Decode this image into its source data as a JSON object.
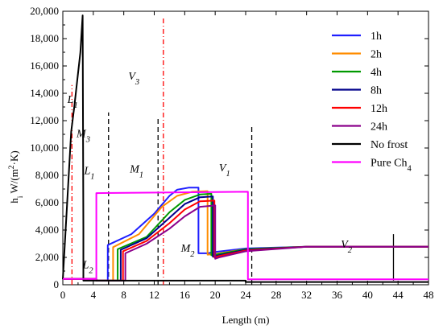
{
  "chart_data": {
    "type": "line",
    "xlabel": "Length (m)",
    "ylabel": "h_i W/(m^2·K)",
    "xlim": [
      0,
      48
    ],
    "ylim": [
      0,
      20000
    ],
    "x_ticks": [
      "0",
      "4",
      "8",
      "12",
      "16",
      "20",
      "24",
      "28",
      "32",
      "36",
      "40",
      "44",
      "48"
    ],
    "y_ticks": [
      "0",
      "2,000",
      "4,000",
      "6,000",
      "8,000",
      "10,000",
      "12,000",
      "14,000",
      "16,000",
      "18,000",
      "20,000"
    ],
    "legend_position": "top-right",
    "series": [
      {
        "name": "1h",
        "color": "#1f1fff",
        "x": [
          0,
          4.4,
          4.4,
          5.9,
          5.9,
          9,
          12,
          14,
          15,
          16.5,
          17.8,
          17.8,
          19,
          20,
          24,
          32,
          48
        ],
        "y": [
          430,
          430,
          300,
          300,
          2900,
          3700,
          5200,
          6500,
          6950,
          7100,
          7100,
          2300,
          2300,
          2400,
          2650,
          2780,
          2780
        ]
      },
      {
        "name": "2h",
        "color": "#ff8c00",
        "x": [
          0,
          4.4,
          4.4,
          6.6,
          6.6,
          10,
          13,
          15,
          17,
          19,
          19,
          20,
          24,
          32,
          48
        ],
        "y": [
          430,
          430,
          300,
          300,
          2750,
          3700,
          5700,
          6500,
          6800,
          6850,
          2200,
          2250,
          2600,
          2780,
          2780
        ]
      },
      {
        "name": "4h",
        "color": "#009900",
        "x": [
          0,
          4.4,
          4.4,
          7.2,
          7.2,
          11,
          14,
          16,
          18,
          19.5,
          19.5,
          20.5,
          24,
          32,
          48
        ],
        "y": [
          430,
          430,
          300,
          300,
          2600,
          3500,
          5300,
          6200,
          6600,
          6650,
          2150,
          2250,
          2600,
          2780,
          2780
        ]
      },
      {
        "name": "8h",
        "color": "#00008b",
        "x": [
          0,
          4.4,
          4.4,
          7.6,
          7.6,
          11,
          14,
          16,
          18,
          19.7,
          19.7,
          20.5,
          24,
          32,
          48
        ],
        "y": [
          430,
          430,
          300,
          300,
          2550,
          3400,
          4900,
          5900,
          6400,
          6450,
          2050,
          2150,
          2550,
          2780,
          2780
        ]
      },
      {
        "name": "12h",
        "color": "#ff0000",
        "x": [
          0,
          4.4,
          4.4,
          7.9,
          7.9,
          11,
          14,
          16,
          18,
          19.9,
          19.9,
          20.5,
          24,
          32,
          48
        ],
        "y": [
          430,
          430,
          300,
          300,
          2450,
          3200,
          4500,
          5500,
          6100,
          6150,
          2000,
          2100,
          2500,
          2780,
          2780
        ]
      },
      {
        "name": "24h",
        "color": "#8b008b",
        "x": [
          0,
          4.4,
          4.4,
          8.2,
          8.2,
          11,
          14,
          16,
          18,
          20,
          20,
          20.5,
          24,
          32,
          48
        ],
        "y": [
          430,
          430,
          300,
          300,
          2300,
          3000,
          4100,
          5000,
          5700,
          5800,
          1900,
          2000,
          2450,
          2780,
          2780
        ]
      },
      {
        "name": "No frost",
        "color": "#000000",
        "x": [
          0,
          1.1,
          1.5,
          2.3,
          2.6,
          2.7,
          2.7,
          24,
          24,
          48
        ],
        "y": [
          400,
          11200,
          13000,
          17000,
          19700,
          4000,
          300,
          300,
          200,
          200
        ]
      },
      {
        "name": "Pure Ch4",
        "color": "#ff00ff",
        "x": [
          0,
          4.4,
          4.4,
          24.3,
          24.3,
          48
        ],
        "y": [
          430,
          430,
          6700,
          6800,
          400,
          400
        ]
      }
    ],
    "annotations": [
      {
        "text": "L_1",
        "x": 0.6,
        "y": 13300
      },
      {
        "text": "M_3",
        "x": 1.8,
        "y": 10800
      },
      {
        "text": "V_3",
        "x": 8.6,
        "y": 15000
      },
      {
        "text": "L_1",
        "x": 2.8,
        "y": 8100
      },
      {
        "text": "M_1",
        "x": 8.8,
        "y": 8200
      },
      {
        "text": "V_1",
        "x": 20.5,
        "y": 8300
      },
      {
        "text": "M_2",
        "x": 15.5,
        "y": 2400
      },
      {
        "text": "L_2",
        "x": 2.6,
        "y": 1200
      },
      {
        "text": "V_2",
        "x": 36.5,
        "y": 2700
      }
    ],
    "dashed_lines": [
      {
        "x": 6.0,
        "y0": 0,
        "y1": 12600,
        "color": "#000000",
        "style": "dash"
      },
      {
        "x": 12.5,
        "y0": 0,
        "y1": 12200,
        "color": "#000000",
        "style": "dash"
      },
      {
        "x": 24.8,
        "y0": 0,
        "y1": 11600,
        "color": "#000000",
        "style": "dash"
      },
      {
        "x": 13.2,
        "y0": 0,
        "y1": 19600,
        "color": "#ff0000",
        "style": "dashdot"
      },
      {
        "x": 1.2,
        "y0": 0,
        "y1": 14600,
        "color": "#ff0000",
        "style": "dashdot"
      }
    ],
    "solid_marks": [
      {
        "x": 43.4,
        "y0": 300,
        "y1": 3700
      }
    ]
  }
}
